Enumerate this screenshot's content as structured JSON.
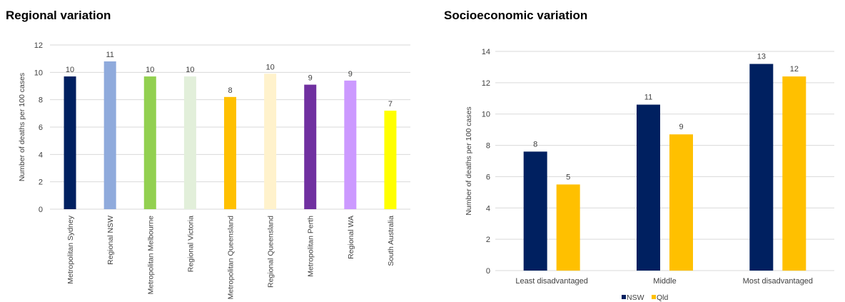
{
  "chart_data": [
    {
      "type": "bar",
      "title": "Regional variation",
      "ylabel": "Number of deaths per 100 cases",
      "ylim": [
        0,
        12
      ],
      "yticks": [
        0,
        2,
        4,
        6,
        8,
        10,
        12
      ],
      "grid": true,
      "categories": [
        "Metropolitan Sydney",
        "Regional NSW",
        "Metropolitan Melbourne",
        "Regional Victoria",
        "Metropolitan Queensland",
        "Regional Queensland",
        "Metropolitan Perth",
        "Regional WA",
        "South Australia"
      ],
      "values": [
        9.7,
        10.8,
        9.7,
        9.7,
        8.2,
        9.9,
        9.1,
        9.4,
        7.2
      ],
      "data_labels": [
        "10",
        "11",
        "10",
        "10",
        "8",
        "10",
        "9",
        "9",
        "7"
      ],
      "colors": [
        "#002060",
        "#8faadc",
        "#92d050",
        "#e2efda",
        "#ffc000",
        "#fff2cc",
        "#7030a0",
        "#cc99ff",
        "#ffff00"
      ]
    },
    {
      "type": "bar",
      "title": "Socioeconomic variation",
      "ylabel": "Number of deaths per 100 cases",
      "ylim": [
        0,
        14
      ],
      "yticks": [
        0,
        2,
        4,
        6,
        8,
        10,
        12,
        14
      ],
      "grid": true,
      "legend": "bottom",
      "categories": [
        "Least disadvantaged",
        "Middle",
        "Most disadvantaged"
      ],
      "series": [
        {
          "name": "NSW",
          "color": "#002060",
          "values": [
            7.6,
            10.6,
            13.2
          ],
          "data_labels": [
            "8",
            "11",
            "13"
          ]
        },
        {
          "name": "Qld",
          "color": "#ffc000",
          "values": [
            5.5,
            8.7,
            12.4
          ],
          "data_labels": [
            "5",
            "9",
            "12"
          ]
        }
      ]
    }
  ]
}
